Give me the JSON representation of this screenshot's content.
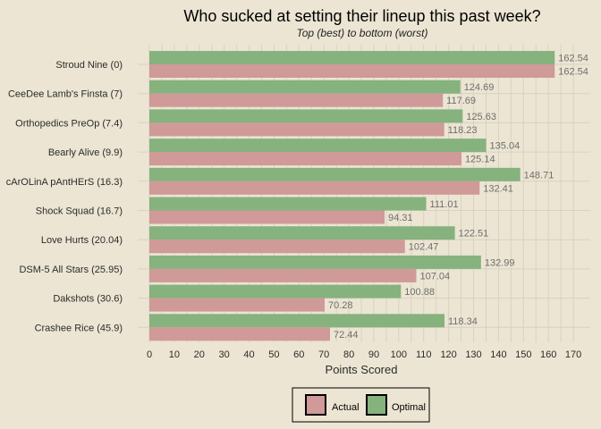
{
  "chart_data": {
    "type": "bar",
    "orientation": "horizontal",
    "title": "Who sucked at setting their lineup this past week?",
    "subtitle": "Top (best) to bottom (worst)",
    "xlabel": "Points Scored",
    "ylabel": "",
    "xlim": [
      0,
      170
    ],
    "xticks": [
      0,
      10,
      20,
      30,
      40,
      50,
      60,
      70,
      80,
      90,
      100,
      110,
      120,
      130,
      140,
      150,
      160,
      170
    ],
    "grid": true,
    "legend_position": "bottom",
    "categories": [
      "Stroud Nine (0)",
      "CeeDee Lamb's Finsta (7)",
      "Orthopedics PreOp (7.4)",
      "Bearly Alive (9.9)",
      "cArOLinA pAntHErS (16.3)",
      "Shock Squad (16.7)",
      "Love Hurts (20.04)",
      "DSM-5 All Stars (25.95)",
      "Dakshots (30.6)",
      "Crashee Rice (45.9)"
    ],
    "series": [
      {
        "name": "Optimal",
        "color": "#86B27E",
        "values": [
          162.54,
          124.69,
          125.63,
          135.04,
          148.71,
          111.01,
          122.51,
          132.99,
          100.88,
          118.34
        ],
        "labels": [
          "162.54",
          "124.69",
          "125.63",
          "135.04",
          "148.71",
          "111.01",
          "122.51",
          "132.99",
          "100.88",
          "118.34"
        ]
      },
      {
        "name": "Actual",
        "color": "#CF9A98",
        "values": [
          162.54,
          117.69,
          118.23,
          125.14,
          132.41,
          94.31,
          102.47,
          107.04,
          70.28,
          72.44
        ],
        "labels": [
          "162.54",
          "117.69",
          "118.23",
          "125.14",
          "132.41",
          "94.31",
          "102.47",
          "107.04",
          "70.28",
          "72.44"
        ]
      }
    ],
    "legend_order": [
      "Actual",
      "Optimal"
    ]
  },
  "colors": {
    "background": "#ECE5D3",
    "grid": "#D9D2C0",
    "actual": "#CF9A98",
    "optimal": "#86B27E"
  }
}
